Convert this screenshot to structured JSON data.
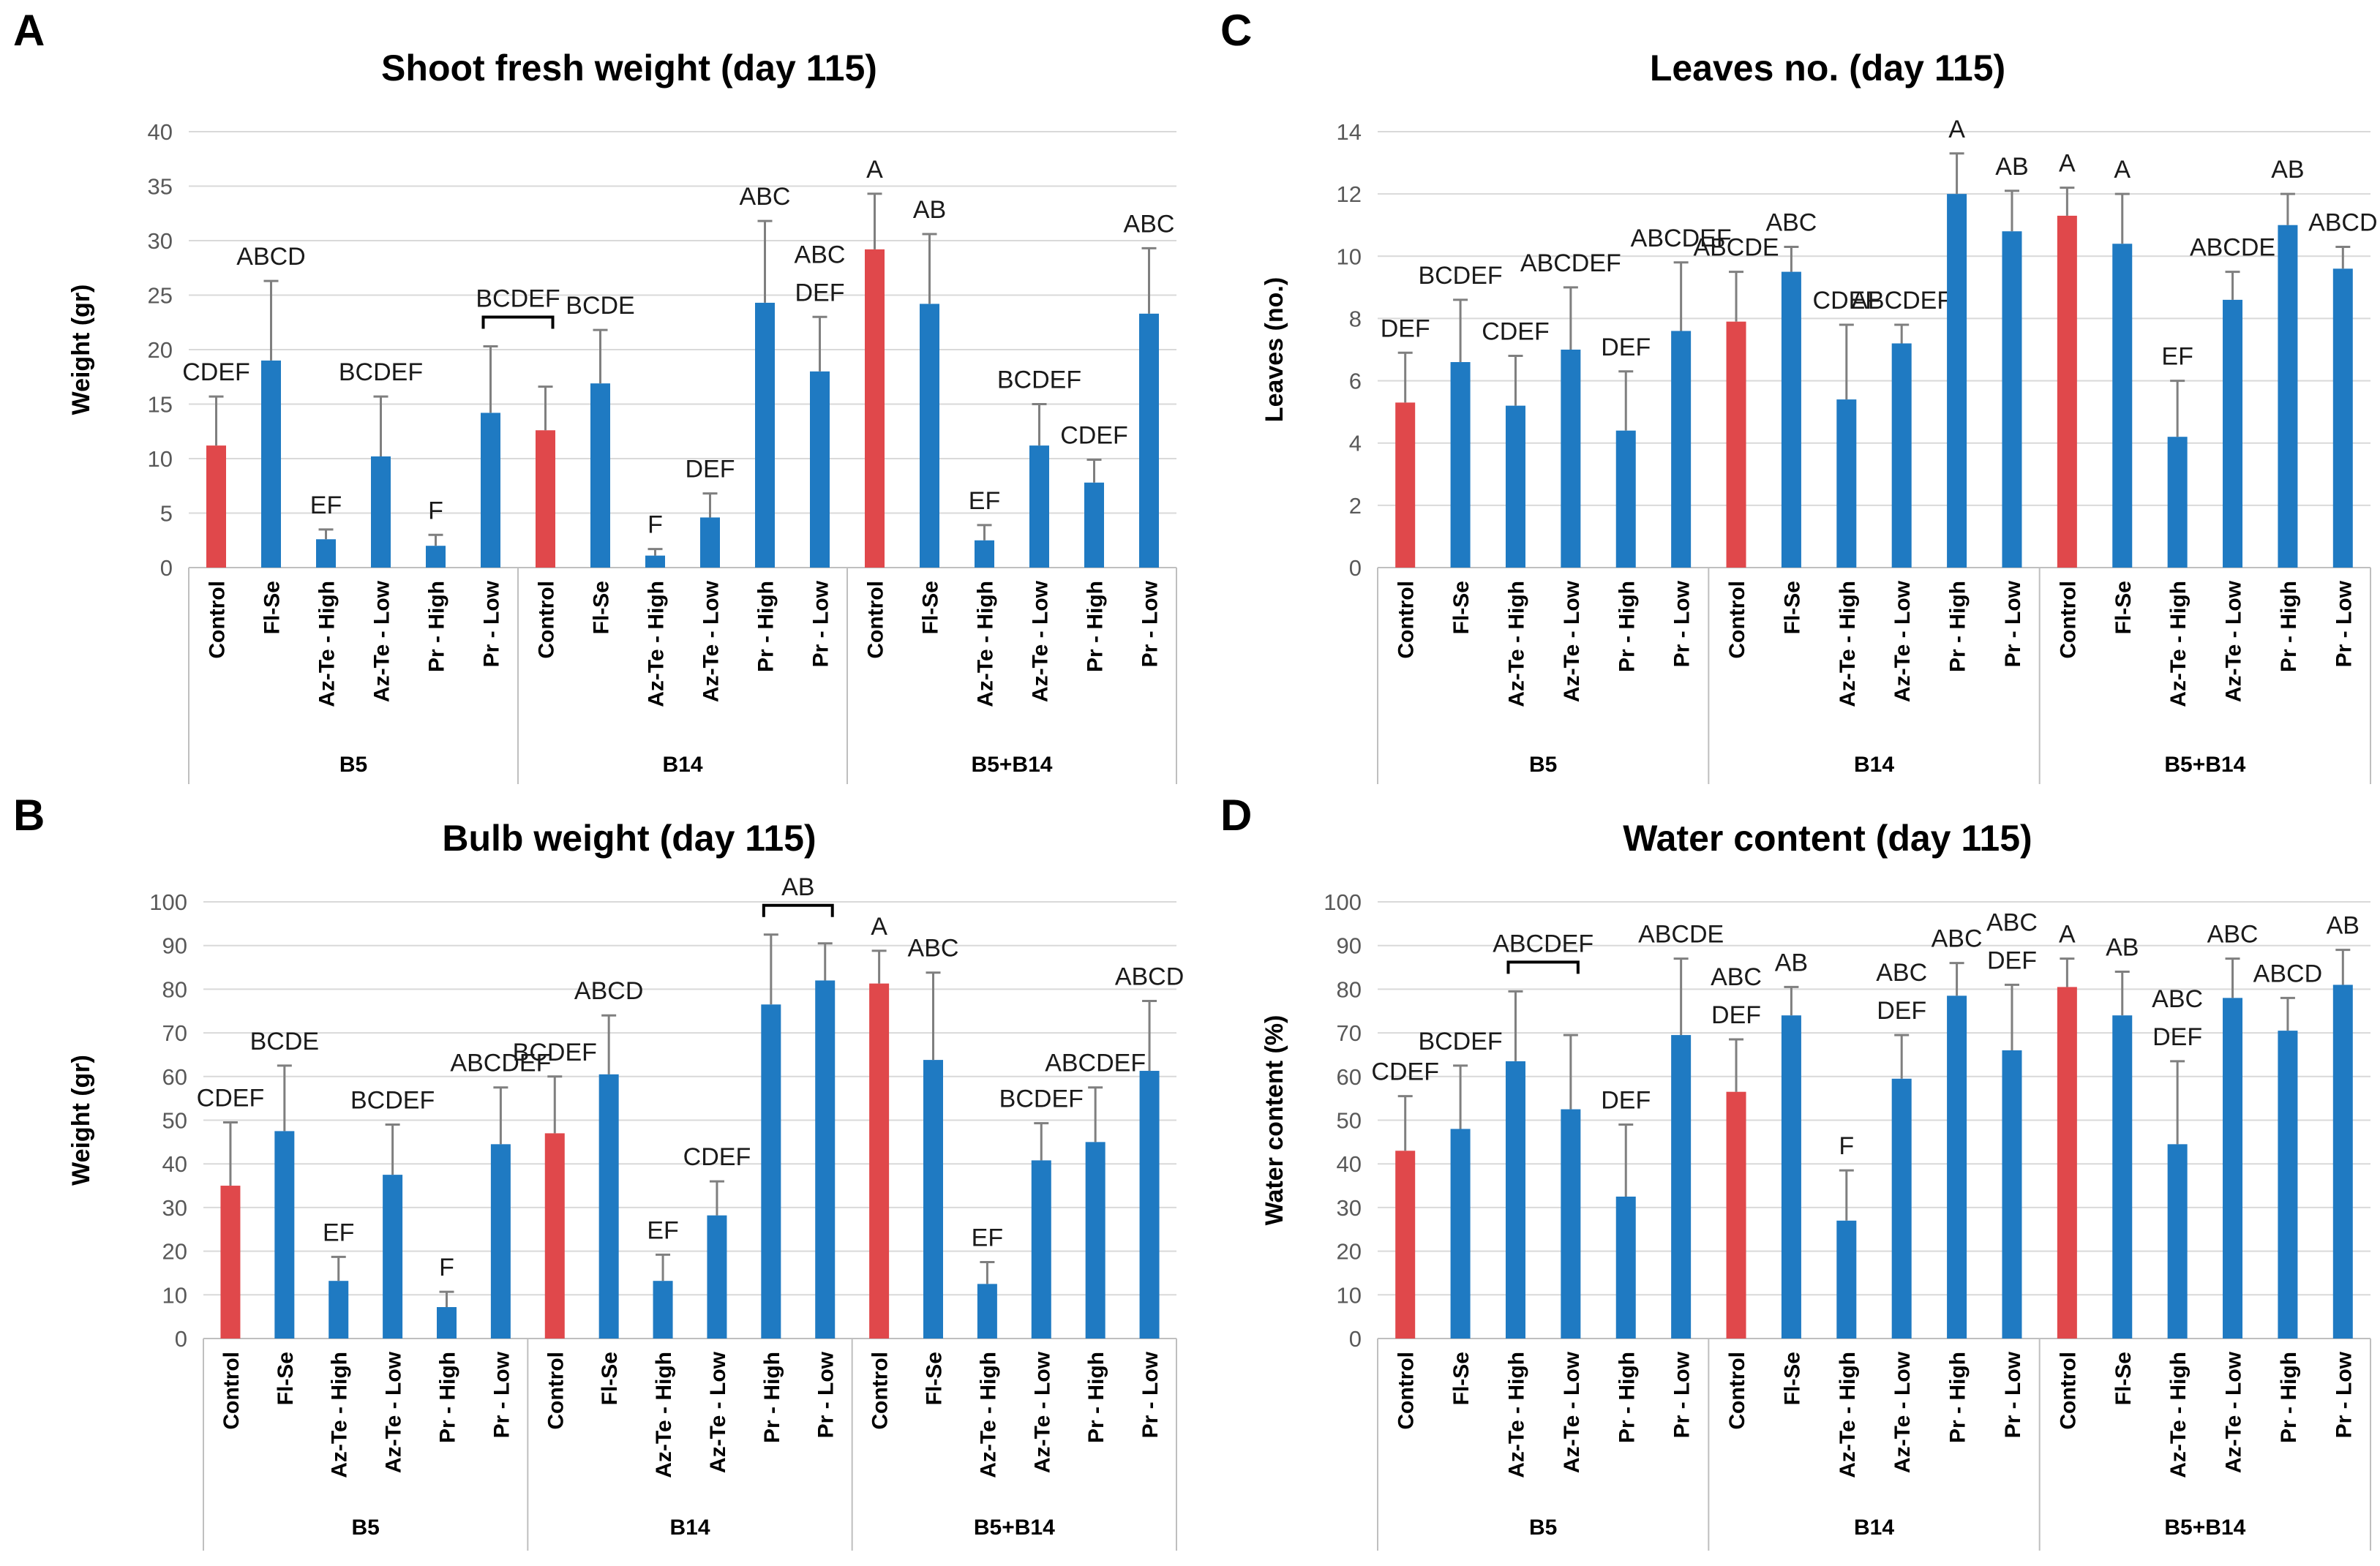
{
  "colors": {
    "control": "#E0484B",
    "treatment": "#1F7AC2",
    "error_bar": "#7f7f7f",
    "grid": "#d9d9d9"
  },
  "chart_data": [
    {
      "panel": "A",
      "type": "bar",
      "title": "Shoot fresh weight (day 115)",
      "ylabel": "Weight (gr)",
      "ylim": [
        0,
        40
      ],
      "yticks": [
        "0",
        "5",
        "10",
        "15",
        "20",
        "25",
        "30",
        "35",
        "40"
      ],
      "groups": [
        {
          "name": "B5",
          "categories": [
            "Control",
            "Fl-Se",
            "Az-Te - High",
            "Az-Te - Low",
            "Pr - High",
            "Pr - Low"
          ],
          "values": [
            11.2,
            19.0,
            2.6,
            10.2,
            2.0,
            14.2
          ],
          "errors": [
            4.5,
            7.3,
            0.9,
            5.5,
            1.0,
            6.1
          ],
          "labels": [
            [
              "CDEF"
            ],
            [
              "ABCD"
            ],
            [
              "EF"
            ],
            [
              "BCDEF"
            ],
            [
              "F"
            ],
            []
          ]
        },
        {
          "name": "B14",
          "categories": [
            "Control",
            "Fl-Se",
            "Az-Te - High",
            "Az-Te - Low",
            "Pr - High",
            "Pr - Low"
          ],
          "values": [
            12.6,
            16.9,
            1.1,
            4.6,
            24.3,
            18.0
          ],
          "errors": [
            4.0,
            4.9,
            0.6,
            2.2,
            7.5,
            5.0
          ],
          "labels": [
            [],
            [
              "BCDE"
            ],
            [
              "F"
            ],
            [
              "DEF"
            ],
            [
              "ABC"
            ],
            [
              "ABC",
              "DEF"
            ]
          ]
        },
        {
          "name": "B5+B14",
          "categories": [
            "Control",
            "Fl-Se",
            "Az-Te - High",
            "Az-Te - Low",
            "Pr - High",
            "Pr - Low"
          ],
          "values": [
            29.2,
            24.2,
            2.5,
            11.2,
            7.8,
            23.3
          ],
          "errors": [
            5.1,
            6.4,
            1.4,
            3.8,
            2.1,
            6.0
          ],
          "labels": [
            [
              "A"
            ],
            [
              "AB"
            ],
            [
              "EF"
            ],
            [
              "BCDEF"
            ],
            [
              "CDEF"
            ],
            [
              "ABC"
            ]
          ]
        }
      ],
      "brackets": [
        {
          "label": "BCDEF",
          "from": [
            0,
            5
          ],
          "to": [
            1,
            0
          ]
        }
      ]
    },
    {
      "panel": "B",
      "type": "bar",
      "title": "Bulb weight (day 115)",
      "ylabel": "Weight (gr)",
      "ylim": [
        0,
        100
      ],
      "yticks": [
        "0",
        "10",
        "20",
        "30",
        "40",
        "50",
        "60",
        "70",
        "80",
        "90",
        "100"
      ],
      "groups": [
        {
          "name": "B5",
          "categories": [
            "Control",
            "Fl-Se",
            "Az-Te - High",
            "Az-Te - Low",
            "Pr - High",
            "Pr - Low"
          ],
          "values": [
            35,
            47.5,
            13.2,
            37.5,
            7.2,
            44.5
          ],
          "errors": [
            14.5,
            15.0,
            5.5,
            11.5,
            3.5,
            13.0
          ],
          "labels": [
            [
              "CDEF"
            ],
            [
              "BCDE"
            ],
            [
              "EF"
            ],
            [
              "BCDEF"
            ],
            [
              "F"
            ],
            [
              "ABCDEF"
            ]
          ]
        },
        {
          "name": "B14",
          "categories": [
            "Control",
            "Fl-Se",
            "Az-Te - High",
            "Az-Te - Low",
            "Pr - High",
            "Pr - Low"
          ],
          "values": [
            47,
            60.5,
            13.2,
            28.2,
            76.5,
            82.0
          ],
          "errors": [
            13.0,
            13.5,
            6.0,
            7.8,
            16.0,
            8.5
          ],
          "labels": [
            [
              "BCDEF"
            ],
            [
              "ABCD"
            ],
            [
              "EF"
            ],
            [
              "CDEF"
            ],
            [],
            []
          ]
        },
        {
          "name": "B5+B14",
          "categories": [
            "Control",
            "Fl-Se",
            "Az-Te - High",
            "Az-Te - Low",
            "Pr - High",
            "Pr - Low"
          ],
          "values": [
            81.3,
            63.8,
            12.5,
            40.8,
            45.0,
            61.3
          ],
          "errors": [
            7.5,
            20.0,
            5.0,
            8.5,
            12.5,
            16.0
          ],
          "labels": [
            [
              "A"
            ],
            [
              "ABC"
            ],
            [
              "EF"
            ],
            [
              "BCDEF"
            ],
            [
              "ABCDEF"
            ],
            [
              "ABCD"
            ]
          ]
        }
      ],
      "brackets": [
        {
          "label": "AB",
          "from": [
            1,
            4
          ],
          "to": [
            1,
            5
          ]
        }
      ]
    },
    {
      "panel": "C",
      "type": "bar",
      "title": "Leaves no. (day 115)",
      "ylabel": "Leaves  (no.)",
      "ylim": [
        0,
        14
      ],
      "yticks": [
        "0",
        "2",
        "4",
        "6",
        "8",
        "10",
        "12",
        "14"
      ],
      "groups": [
        {
          "name": "B5",
          "categories": [
            "Control",
            "Fl-Se",
            "Az-Te - High",
            "Az-Te - Low",
            "Pr - High",
            "Pr - Low"
          ],
          "values": [
            5.3,
            6.6,
            5.2,
            7.0,
            4.4,
            7.6
          ],
          "errors": [
            1.6,
            2.0,
            1.6,
            2.0,
            1.9,
            2.2
          ],
          "labels": [
            [
              "DEF"
            ],
            [
              "BCDEF"
            ],
            [
              "CDEF"
            ],
            [
              "ABCDEF"
            ],
            [
              "DEF"
            ],
            [
              "ABCDEF"
            ]
          ]
        },
        {
          "name": "B14",
          "categories": [
            "Control",
            "Fl-Se",
            "Az-Te - High",
            "Az-Te - Low",
            "Pr - High",
            "Pr - Low"
          ],
          "values": [
            7.9,
            9.5,
            5.4,
            7.2,
            12.0,
            10.8
          ],
          "errors": [
            1.6,
            0.8,
            2.4,
            0.6,
            1.3,
            1.3
          ],
          "labels": [
            [
              "ABCDE"
            ],
            [
              "ABC"
            ],
            [
              "CDEF"
            ],
            [
              "ABCDEF"
            ],
            [
              "A"
            ],
            [
              "AB"
            ]
          ]
        },
        {
          "name": "B5+B14",
          "categories": [
            "Control",
            "Fl-Se",
            "Az-Te - High",
            "Az-Te - Low",
            "Pr - High",
            "Pr - Low"
          ],
          "values": [
            11.3,
            10.4,
            4.2,
            8.6,
            11.0,
            9.6
          ],
          "errors": [
            0.9,
            1.6,
            1.8,
            0.9,
            1.0,
            0.7
          ],
          "labels": [
            [
              "A"
            ],
            [
              "A"
            ],
            [
              "EF"
            ],
            [
              "ABCDE"
            ],
            [
              "AB"
            ],
            [
              "ABCD"
            ]
          ]
        }
      ],
      "brackets": []
    },
    {
      "panel": "D",
      "type": "bar",
      "title": "Water content (day 115)",
      "ylabel": "Water content (%)",
      "ylim": [
        0,
        100
      ],
      "yticks": [
        "0",
        "10",
        "20",
        "30",
        "40",
        "50",
        "60",
        "70",
        "80",
        "90",
        "100"
      ],
      "groups": [
        {
          "name": "B5",
          "categories": [
            "Control",
            "Fl-Se",
            "Az-Te - High",
            "Az-Te - Low",
            "Pr - High",
            "Pr - Low"
          ],
          "values": [
            43,
            48,
            63.5,
            52.5,
            32.5,
            69.5
          ],
          "errors": [
            12.5,
            14.5,
            16.0,
            17.0,
            16.5,
            17.5
          ],
          "labels": [
            [
              "CDEF"
            ],
            [
              "BCDEF"
            ],
            [],
            [],
            [
              "DEF"
            ],
            [
              "ABCDE"
            ]
          ]
        },
        {
          "name": "B14",
          "categories": [
            "Control",
            "Fl-Se",
            "Az-Te - High",
            "Az-Te - Low",
            "Pr - High",
            "Pr - Low"
          ],
          "values": [
            56.5,
            74.0,
            27.0,
            59.5,
            78.5,
            66.0
          ],
          "errors": [
            12.0,
            6.5,
            11.5,
            10.0,
            7.5,
            15.0
          ],
          "labels": [
            [
              "ABC",
              "DEF"
            ],
            [
              "AB"
            ],
            [
              "F"
            ],
            [
              "ABC",
              "DEF"
            ],
            [
              "ABC"
            ],
            [
              "ABC",
              "DEF"
            ]
          ]
        },
        {
          "name": "B5+B14",
          "categories": [
            "Control",
            "Fl-Se",
            "Az-Te - High",
            "Az-Te - Low",
            "Pr - High",
            "Pr - Low"
          ],
          "values": [
            80.5,
            74.0,
            44.5,
            78.0,
            70.5,
            81.0
          ],
          "errors": [
            6.5,
            10.0,
            19.0,
            9.0,
            7.5,
            8.0
          ],
          "labels": [
            [
              "A"
            ],
            [
              "AB"
            ],
            [
              "ABC",
              "DEF"
            ],
            [
              "ABC"
            ],
            [
              "ABCD"
            ],
            [
              "AB"
            ]
          ]
        }
      ],
      "brackets": [
        {
          "label": "ABCDEF",
          "from": [
            0,
            2
          ],
          "to": [
            0,
            3
          ]
        }
      ]
    }
  ]
}
